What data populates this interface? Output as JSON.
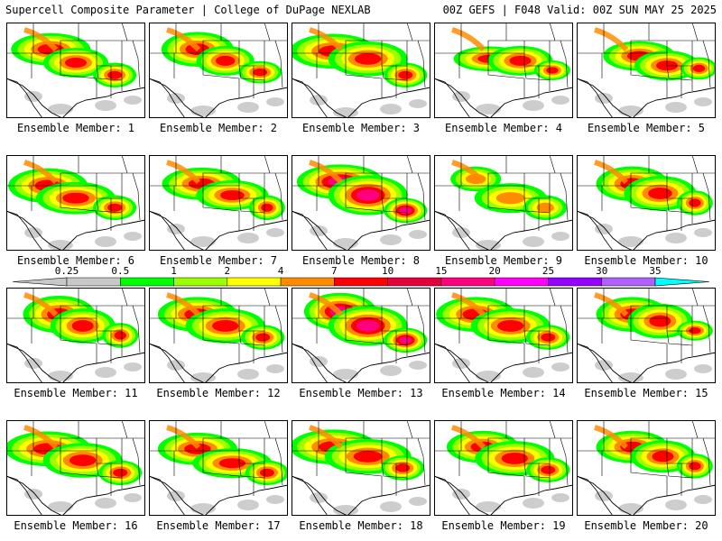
{
  "header": {
    "title_left": "Supercell Composite Parameter | College of DuPage NEXLAB",
    "title_right": "00Z GEFS | F048 Valid: 00Z SUN MAY 25 2025"
  },
  "panel_label_prefix": "Ensemble Member: ",
  "members": [
    {
      "number": "1",
      "intensity": 4,
      "lobes": [
        [
          0.32,
          0.28,
          0.22,
          0.13
        ],
        [
          0.5,
          0.42,
          0.18,
          0.12
        ],
        [
          0.78,
          0.55,
          0.12,
          0.1
        ]
      ]
    },
    {
      "number": "2",
      "intensity": 4,
      "lobes": [
        [
          0.35,
          0.28,
          0.2,
          0.14
        ],
        [
          0.55,
          0.4,
          0.16,
          0.12
        ],
        [
          0.8,
          0.52,
          0.12,
          0.09
        ]
      ]
    },
    {
      "number": "3",
      "intensity": 4,
      "lobes": [
        [
          0.3,
          0.3,
          0.24,
          0.14
        ],
        [
          0.55,
          0.38,
          0.22,
          0.14
        ],
        [
          0.82,
          0.55,
          0.12,
          0.1
        ]
      ]
    },
    {
      "number": "4",
      "intensity": 4,
      "lobes": [
        [
          0.4,
          0.38,
          0.2,
          0.1
        ],
        [
          0.62,
          0.4,
          0.18,
          0.12
        ],
        [
          0.85,
          0.5,
          0.1,
          0.08
        ]
      ]
    },
    {
      "number": "5",
      "intensity": 4,
      "lobes": [
        [
          0.45,
          0.35,
          0.2,
          0.12
        ],
        [
          0.65,
          0.45,
          0.18,
          0.12
        ],
        [
          0.88,
          0.48,
          0.1,
          0.09
        ]
      ]
    },
    {
      "number": "6",
      "intensity": 4,
      "lobes": [
        [
          0.3,
          0.32,
          0.22,
          0.14
        ],
        [
          0.5,
          0.45,
          0.22,
          0.13
        ],
        [
          0.78,
          0.55,
          0.12,
          0.1
        ]
      ]
    },
    {
      "number": "7",
      "intensity": 4,
      "lobes": [
        [
          0.38,
          0.3,
          0.22,
          0.13
        ],
        [
          0.6,
          0.42,
          0.2,
          0.12
        ],
        [
          0.85,
          0.55,
          0.1,
          0.1
        ]
      ]
    },
    {
      "number": "8",
      "intensity": 5,
      "lobes": [
        [
          0.35,
          0.28,
          0.24,
          0.14
        ],
        [
          0.55,
          0.42,
          0.22,
          0.16
        ],
        [
          0.82,
          0.58,
          0.12,
          0.1
        ]
      ]
    },
    {
      "number": "9",
      "intensity": 3,
      "lobes": [
        [
          0.3,
          0.25,
          0.14,
          0.1
        ],
        [
          0.55,
          0.45,
          0.2,
          0.12
        ],
        [
          0.8,
          0.55,
          0.12,
          0.1
        ]
      ]
    },
    {
      "number": "10",
      "intensity": 4,
      "lobes": [
        [
          0.4,
          0.3,
          0.2,
          0.14
        ],
        [
          0.6,
          0.4,
          0.2,
          0.14
        ],
        [
          0.85,
          0.5,
          0.1,
          0.1
        ]
      ]
    },
    {
      "number": "11",
      "intensity": 4,
      "lobes": [
        [
          0.38,
          0.28,
          0.2,
          0.15
        ],
        [
          0.55,
          0.4,
          0.18,
          0.14
        ],
        [
          0.82,
          0.5,
          0.1,
          0.1
        ]
      ]
    },
    {
      "number": "12",
      "intensity": 4,
      "lobes": [
        [
          0.35,
          0.28,
          0.22,
          0.14
        ],
        [
          0.55,
          0.4,
          0.22,
          0.14
        ],
        [
          0.82,
          0.52,
          0.12,
          0.1
        ]
      ]
    },
    {
      "number": "13",
      "intensity": 5,
      "lobes": [
        [
          0.35,
          0.25,
          0.2,
          0.15
        ],
        [
          0.55,
          0.4,
          0.22,
          0.16
        ],
        [
          0.82,
          0.55,
          0.12,
          0.1
        ]
      ]
    },
    {
      "number": "14",
      "intensity": 4,
      "lobes": [
        [
          0.3,
          0.28,
          0.22,
          0.14
        ],
        [
          0.55,
          0.4,
          0.22,
          0.14
        ],
        [
          0.82,
          0.52,
          0.12,
          0.1
        ]
      ]
    },
    {
      "number": "15",
      "intensity": 4,
      "lobes": [
        [
          0.4,
          0.28,
          0.2,
          0.14
        ],
        [
          0.6,
          0.35,
          0.18,
          0.14
        ],
        [
          0.85,
          0.45,
          0.1,
          0.08
        ]
      ]
    },
    {
      "number": "16",
      "intensity": 4,
      "lobes": [
        [
          0.3,
          0.3,
          0.24,
          0.14
        ],
        [
          0.55,
          0.42,
          0.22,
          0.14
        ],
        [
          0.82,
          0.55,
          0.12,
          0.1
        ]
      ]
    },
    {
      "number": "17",
      "intensity": 4,
      "lobes": [
        [
          0.35,
          0.3,
          0.22,
          0.13
        ],
        [
          0.6,
          0.45,
          0.22,
          0.12
        ],
        [
          0.85,
          0.55,
          0.12,
          0.1
        ]
      ]
    },
    {
      "number": "18",
      "intensity": 4,
      "lobes": [
        [
          0.3,
          0.28,
          0.24,
          0.14
        ],
        [
          0.55,
          0.38,
          0.24,
          0.14
        ],
        [
          0.8,
          0.5,
          0.12,
          0.1
        ]
      ]
    },
    {
      "number": "19",
      "intensity": 4,
      "lobes": [
        [
          0.35,
          0.28,
          0.2,
          0.13
        ],
        [
          0.58,
          0.4,
          0.22,
          0.14
        ],
        [
          0.82,
          0.52,
          0.12,
          0.1
        ]
      ]
    },
    {
      "number": "20",
      "intensity": 4,
      "lobes": [
        [
          0.4,
          0.28,
          0.2,
          0.13
        ],
        [
          0.62,
          0.38,
          0.18,
          0.13
        ],
        [
          0.85,
          0.48,
          0.1,
          0.1
        ]
      ]
    }
  ],
  "colorbar": {
    "ticks": [
      "0.25",
      "0.5",
      "1",
      "2",
      "4",
      "7",
      "10",
      "15",
      "20",
      "25",
      "30",
      "35"
    ],
    "colors": [
      "#c8c8c8",
      "#00ff00",
      "#9bff00",
      "#ffff00",
      "#ff8c00",
      "#ff0000",
      "#e6003c",
      "#ff0080",
      "#ff00ff",
      "#9600ff",
      "#b060ff",
      "#00ffff"
    ]
  },
  "map_colors": {
    "ocean": "#ffffff",
    "land": "#ffffff",
    "border": "#000000",
    "state_line": "#000000"
  }
}
